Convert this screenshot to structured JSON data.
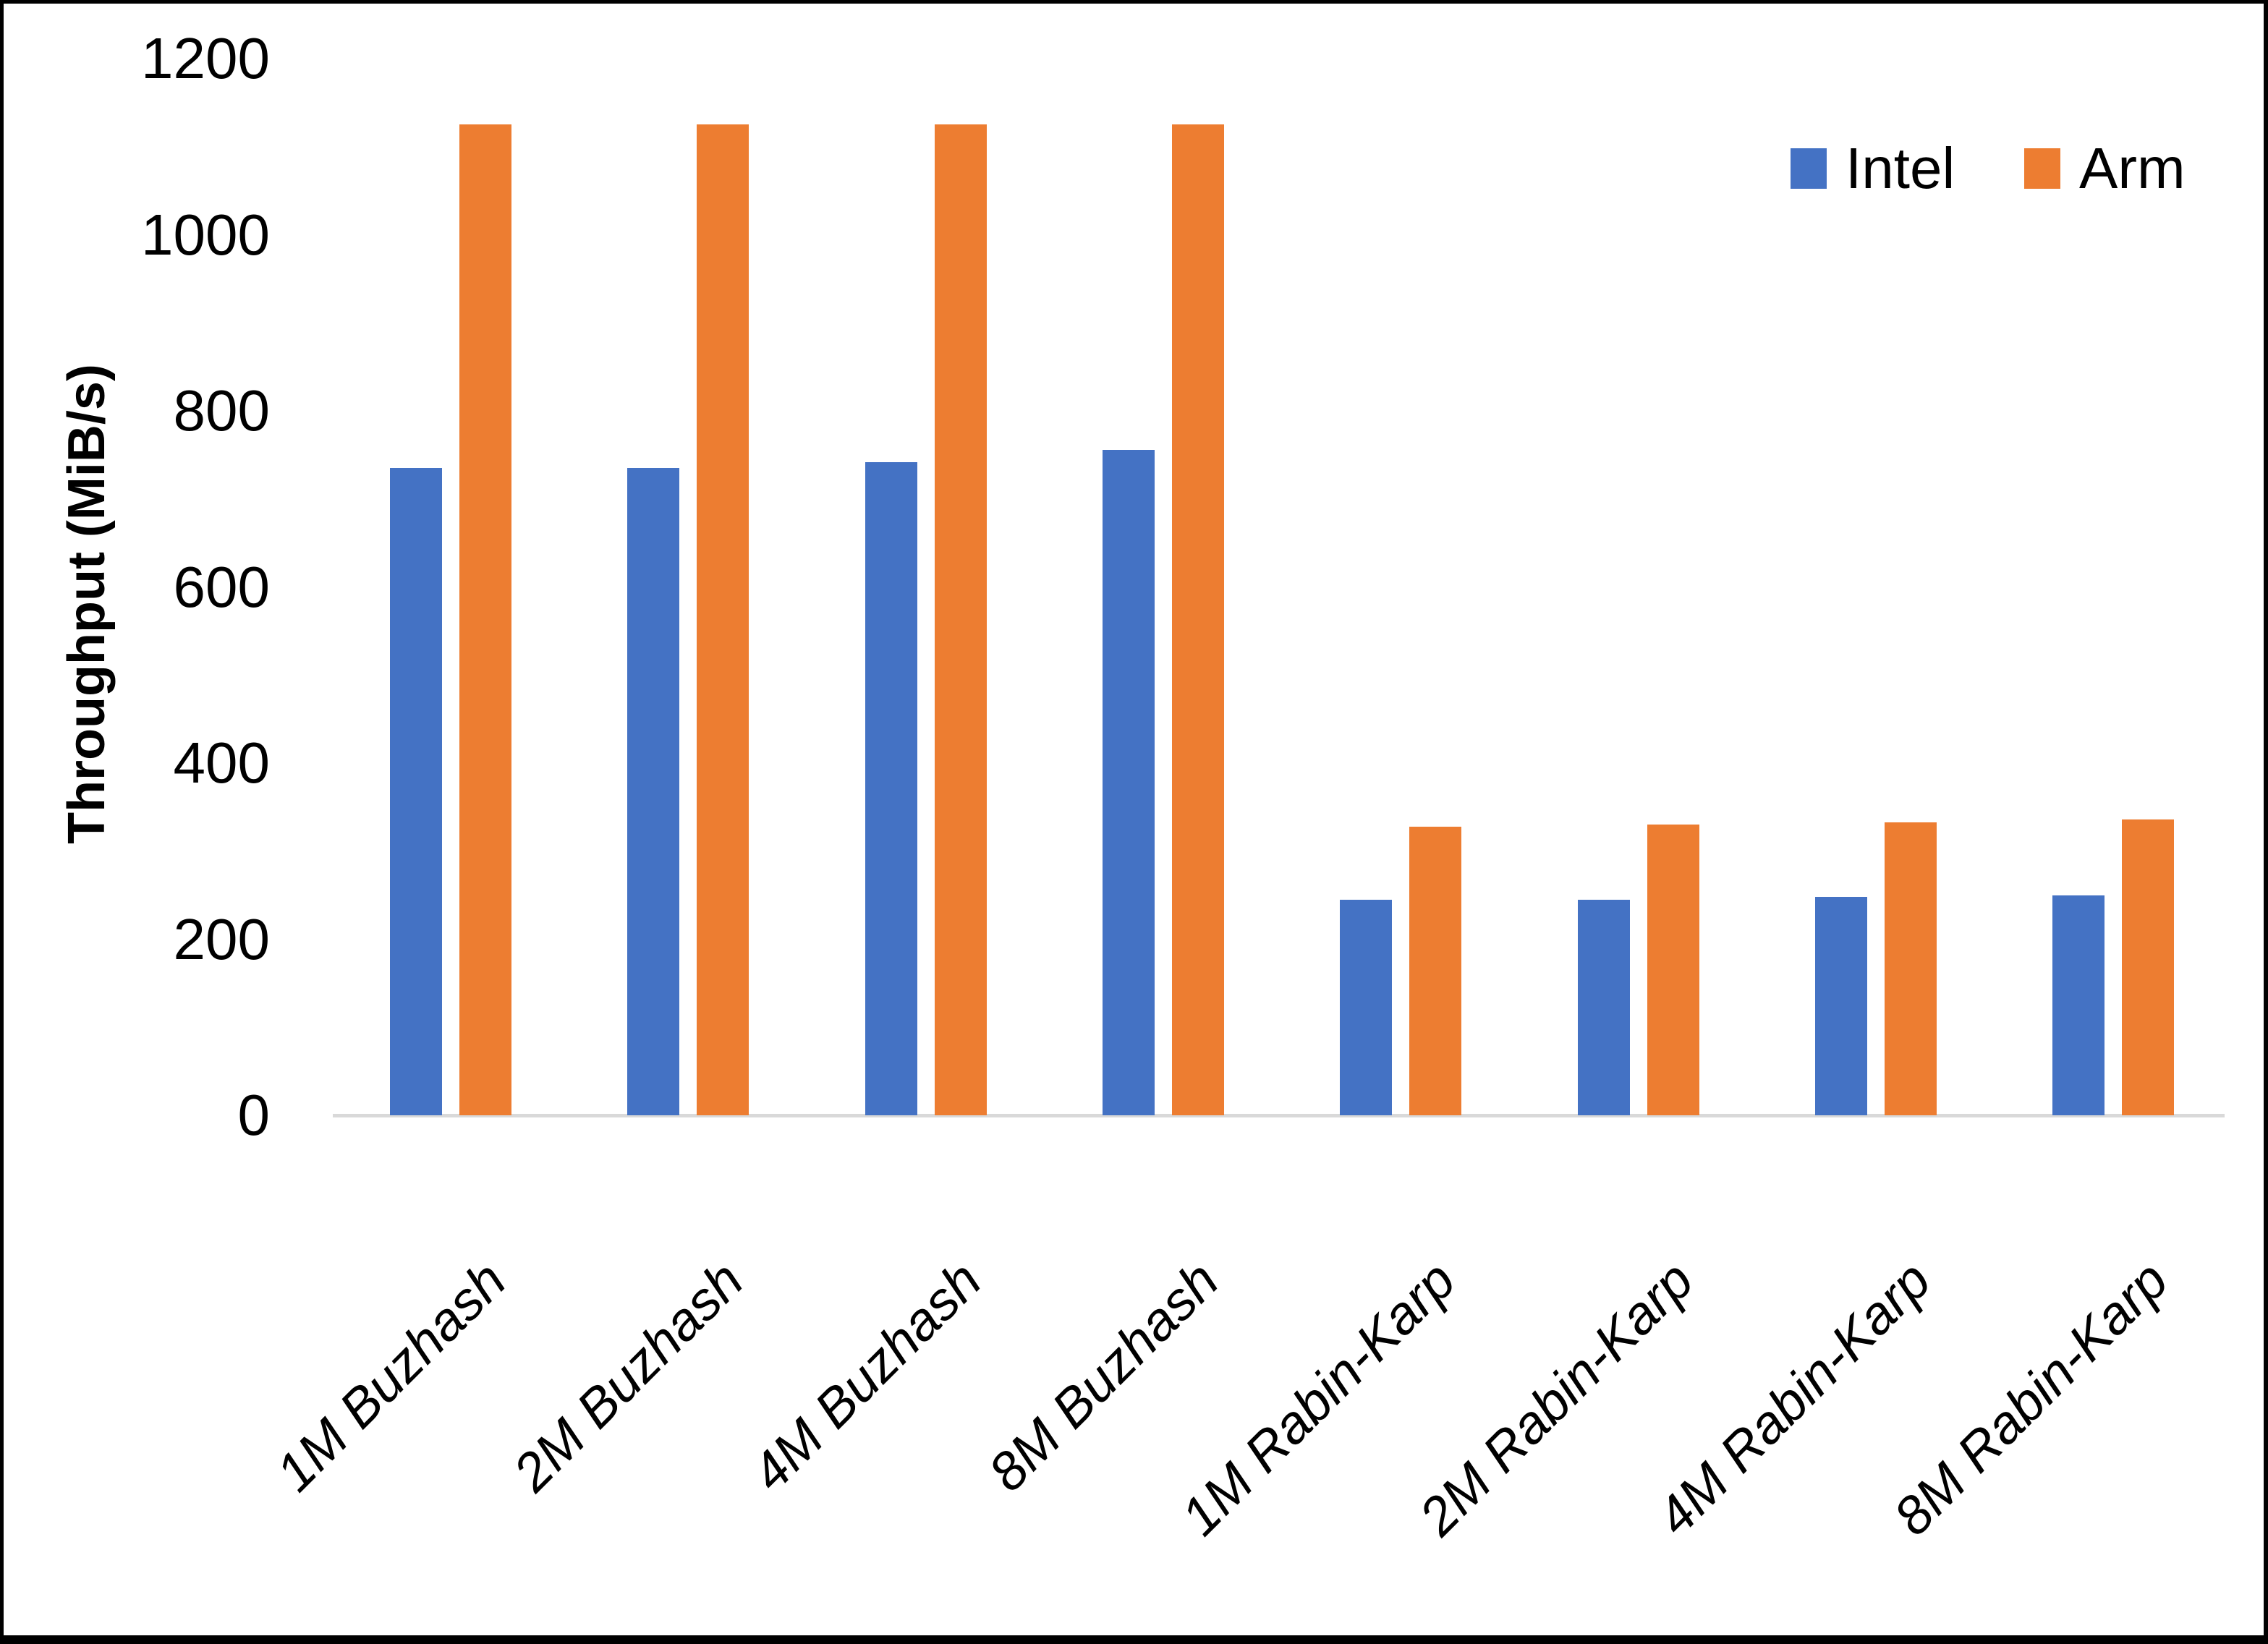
{
  "chart_data": {
    "type": "bar",
    "title": "",
    "ylabel": "Throughput (MiB/s)",
    "xlabel": "",
    "ylim": [
      0,
      1200
    ],
    "ytick_step": 200,
    "yticks": [
      "1200",
      "1000",
      "800",
      "600",
      "400",
      "200",
      "0"
    ],
    "categories": [
      "1M Buzhash",
      "2M Buzhash",
      "4M Buzhash",
      "8M Buzhash",
      "1M Rabin-Karp",
      "2M Rabin-Karp",
      "4M Rabin-Karp",
      "8M Rabin-Karp"
    ],
    "series": [
      {
        "name": "Intel",
        "color": "#4472C4",
        "values": [
          735,
          735,
          742,
          756,
          245,
          245,
          248,
          250
        ]
      },
      {
        "name": "Arm",
        "color": "#ED7D31",
        "values": [
          1125,
          1125,
          1125,
          1125,
          328,
          330,
          333,
          336
        ]
      }
    ],
    "legend_position": "top-right",
    "grid": false,
    "axis_line_color": "#D9D9D9",
    "background_color": "#FFFFFF",
    "frame_color": "#000000"
  }
}
